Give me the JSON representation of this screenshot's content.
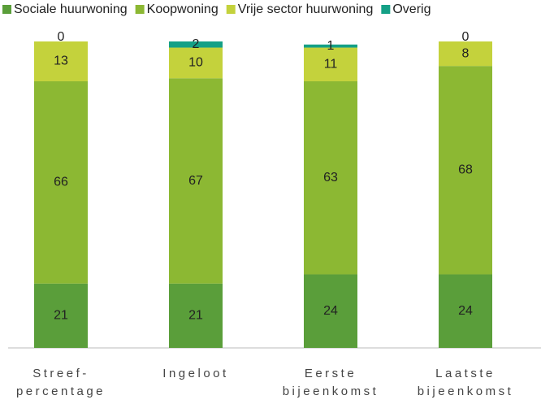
{
  "chart_data": {
    "type": "stacked_bar",
    "categories": [
      "Streef- percentage",
      "Ingeloot",
      "Eerste bijeenkomst",
      "Laatste bijeenkomst"
    ],
    "series": [
      {
        "name": "Sociale huurwoning",
        "color": "#5a9e3a",
        "values": [
          21,
          21,
          24,
          24
        ]
      },
      {
        "name": "Koopwoning",
        "color": "#8cb833",
        "values": [
          66,
          67,
          63,
          68
        ]
      },
      {
        "name": "Vrije sector huurwoning",
        "color": "#c4d23c",
        "values": [
          13,
          10,
          11,
          8
        ]
      },
      {
        "name": "Overig",
        "color": "#14a086",
        "values": [
          0,
          2,
          1,
          0
        ]
      }
    ],
    "ylim": [
      0,
      100
    ]
  }
}
